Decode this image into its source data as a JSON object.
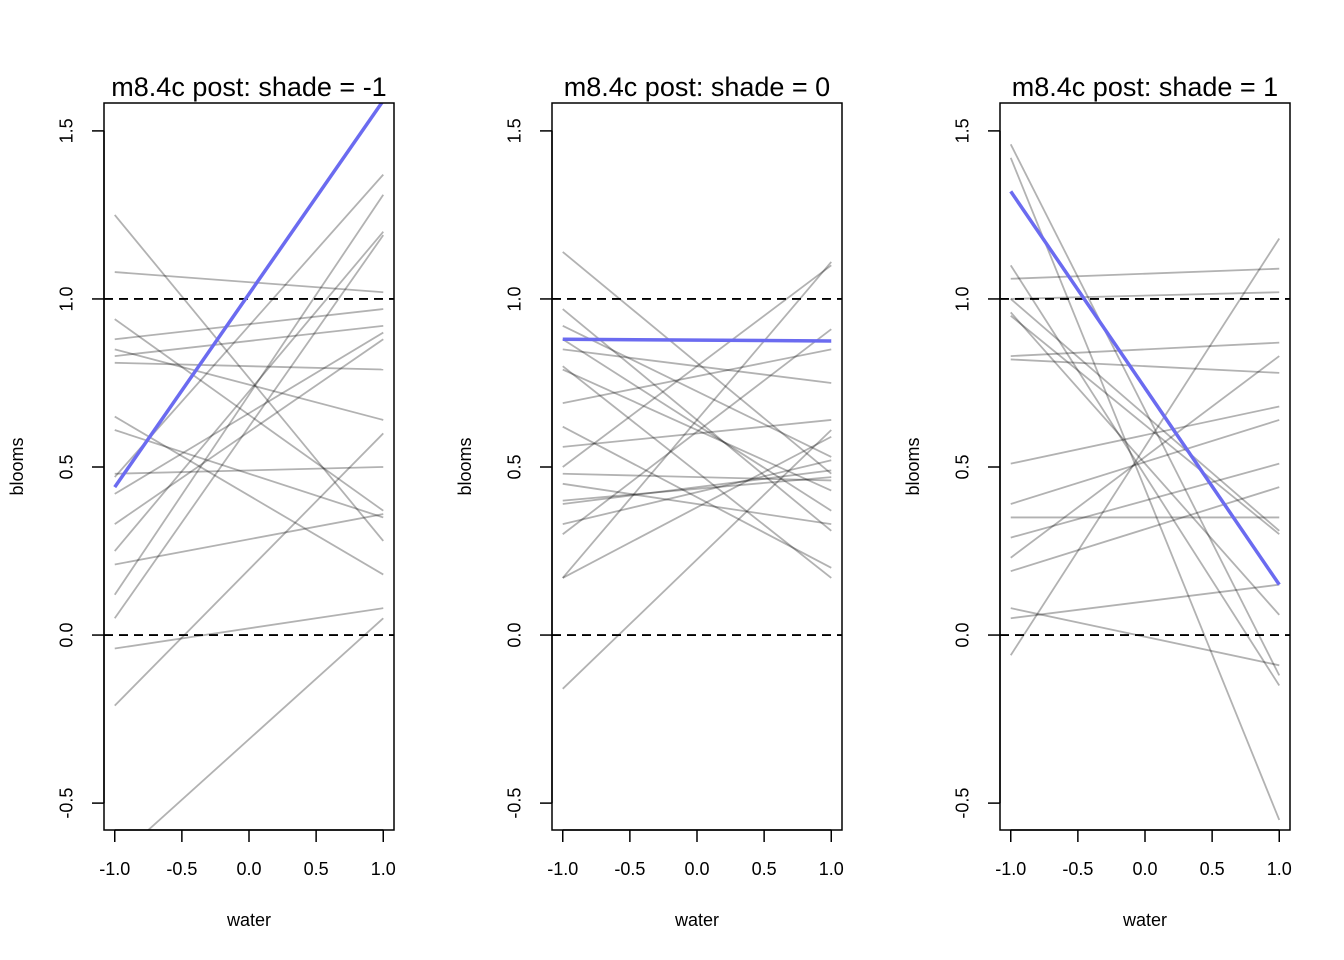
{
  "chart_data": [
    {
      "type": "line",
      "title": "m8.4c post: shade = -1",
      "xlabel": "water",
      "ylabel": "blooms",
      "x": [
        -1,
        1
      ],
      "xlim": [
        -1.08,
        1.08
      ],
      "ylim": [
        -0.58,
        1.583
      ],
      "xticks": [
        {
          "value": -1,
          "label": "-1.0"
        },
        -0.5,
        {
          "value": 0,
          "label": "0.0"
        },
        0.5,
        {
          "value": 1,
          "label": "1.0"
        }
      ],
      "yticks": [
        -0.5,
        {
          "value": 0,
          "label": "0.0"
        },
        0.5,
        {
          "value": 1,
          "label": "1.0"
        },
        1.5
      ],
      "hlines": [
        0,
        1
      ],
      "series": [
        {
          "color": "rgba(0,0,0,0.3)",
          "values": [
            1.25,
            0.28
          ]
        },
        {
          "color": "rgba(0,0,0,0.3)",
          "values": [
            1.08,
            1.02
          ]
        },
        {
          "color": "rgba(0,0,0,0.3)",
          "values": [
            0.94,
            0.37
          ]
        },
        {
          "color": "rgba(0,0,0,0.3)",
          "values": [
            0.88,
            0.97
          ]
        },
        {
          "color": "rgba(0,0,0,0.3)",
          "values": [
            0.85,
            0.64
          ]
        },
        {
          "color": "rgba(0,0,0,0.3)",
          "values": [
            0.83,
            0.92
          ]
        },
        {
          "color": "rgba(0,0,0,0.3)",
          "values": [
            0.81,
            0.79
          ]
        },
        {
          "color": "rgba(0,0,0,0.3)",
          "values": [
            0.65,
            0.18
          ]
        },
        {
          "color": "rgba(0,0,0,0.3)",
          "values": [
            0.61,
            0.35
          ]
        },
        {
          "color": "rgba(0,0,0,0.3)",
          "values": [
            0.48,
            0.5
          ]
        },
        {
          "color": "rgba(0,0,0,0.3)",
          "values": [
            0.42,
            0.9
          ]
        },
        {
          "color": "rgba(0,0,0,0.3)",
          "values": [
            0.33,
            0.88
          ]
        },
        {
          "color": "rgba(0,0,0,0.3)",
          "values": [
            0.25,
            1.2
          ]
        },
        {
          "color": "rgba(0,0,0,0.3)",
          "values": [
            0.21,
            0.36
          ]
        },
        {
          "color": "rgba(0,0,0,0.3)",
          "values": [
            0.12,
            1.31
          ]
        },
        {
          "color": "rgba(0,0,0,0.3)",
          "values": [
            0.05,
            1.19
          ]
        },
        {
          "color": "rgba(0,0,0,0.3)",
          "values": [
            -0.04,
            0.08
          ]
        },
        {
          "color": "rgba(0,0,0,0.3)",
          "values": [
            -0.21,
            0.6
          ]
        },
        {
          "color": "rgba(0,0,0,0.3)",
          "values": [
            -0.67,
            0.05
          ]
        },
        {
          "color": "rgba(0,0,0,0.3)",
          "values": [
            0.47,
            1.37
          ]
        },
        {
          "color": "#6b6bf0",
          "values": [
            0.44,
            1.59
          ]
        }
      ]
    },
    {
      "type": "line",
      "title": "m8.4c post: shade = 0",
      "xlabel": "water",
      "ylabel": "blooms",
      "x": [
        -1,
        1
      ],
      "xlim": [
        -1.08,
        1.08
      ],
      "ylim": [
        -0.58,
        1.583
      ],
      "xticks": [
        {
          "value": -1,
          "label": "-1.0"
        },
        -0.5,
        {
          "value": 0,
          "label": "0.0"
        },
        0.5,
        {
          "value": 1,
          "label": "1.0"
        }
      ],
      "yticks": [
        -0.5,
        {
          "value": 0,
          "label": "0.0"
        },
        0.5,
        {
          "value": 1,
          "label": "1.0"
        },
        1.5
      ],
      "hlines": [
        0,
        1
      ],
      "series": [
        {
          "color": "rgba(0,0,0,0.3)",
          "values": [
            1.14,
            0.48
          ]
        },
        {
          "color": "rgba(0,0,0,0.3)",
          "values": [
            0.97,
            0.31
          ]
        },
        {
          "color": "rgba(0,0,0,0.3)",
          "values": [
            0.92,
            0.53
          ]
        },
        {
          "color": "rgba(0,0,0,0.3)",
          "values": [
            0.88,
            0.37
          ]
        },
        {
          "color": "rgba(0,0,0,0.3)",
          "values": [
            0.85,
            0.75
          ]
        },
        {
          "color": "rgba(0,0,0,0.3)",
          "values": [
            0.8,
            0.17
          ]
        },
        {
          "color": "rgba(0,0,0,0.3)",
          "values": [
            0.79,
            0.43
          ]
        },
        {
          "color": "rgba(0,0,0,0.3)",
          "values": [
            0.69,
            0.85
          ]
        },
        {
          "color": "rgba(0,0,0,0.3)",
          "values": [
            0.62,
            0.2
          ]
        },
        {
          "color": "rgba(0,0,0,0.3)",
          "values": [
            0.56,
            0.64
          ]
        },
        {
          "color": "rgba(0,0,0,0.3)",
          "values": [
            0.5,
            1.1
          ]
        },
        {
          "color": "rgba(0,0,0,0.3)",
          "values": [
            0.48,
            0.46
          ]
        },
        {
          "color": "rgba(0,0,0,0.3)",
          "values": [
            0.45,
            0.33
          ]
        },
        {
          "color": "rgba(0,0,0,0.3)",
          "values": [
            0.4,
            0.47
          ]
        },
        {
          "color": "rgba(0,0,0,0.3)",
          "values": [
            0.39,
            0.49
          ]
        },
        {
          "color": "rgba(0,0,0,0.3)",
          "values": [
            0.33,
            0.52
          ]
        },
        {
          "color": "rgba(0,0,0,0.3)",
          "values": [
            0.3,
            0.91
          ]
        },
        {
          "color": "rgba(0,0,0,0.3)",
          "values": [
            0.17,
            1.11
          ]
        },
        {
          "color": "rgba(0,0,0,0.3)",
          "values": [
            0.17,
            0.59
          ]
        },
        {
          "color": "rgba(0,0,0,0.3)",
          "values": [
            -0.16,
            0.61
          ]
        },
        {
          "color": "#6b6bf0",
          "values": [
            0.88,
            0.875
          ]
        }
      ]
    },
    {
      "type": "line",
      "title": "m8.4c post: shade = 1",
      "xlabel": "water",
      "ylabel": "blooms",
      "x": [
        -1,
        1
      ],
      "xlim": [
        -1.08,
        1.08
      ],
      "ylim": [
        -0.58,
        1.583
      ],
      "xticks": [
        {
          "value": -1,
          "label": "-1.0"
        },
        -0.5,
        {
          "value": 0,
          "label": "0.0"
        },
        0.5,
        {
          "value": 1,
          "label": "1.0"
        }
      ],
      "yticks": [
        -0.5,
        {
          "value": 0,
          "label": "0.0"
        },
        0.5,
        {
          "value": 1,
          "label": "1.0"
        },
        1.5
      ],
      "hlines": [
        0,
        1
      ],
      "series": [
        {
          "color": "rgba(0,0,0,0.3)",
          "values": [
            1.46,
            -0.12
          ]
        },
        {
          "color": "rgba(0,0,0,0.3)",
          "values": [
            1.42,
            -0.55
          ]
        },
        {
          "color": "rgba(0,0,0,0.3)",
          "values": [
            1.1,
            -0.15
          ]
        },
        {
          "color": "rgba(0,0,0,0.3)",
          "values": [
            1.06,
            1.09
          ]
        },
        {
          "color": "rgba(0,0,0,0.3)",
          "values": [
            1.0,
            0.31
          ]
        },
        {
          "color": "rgba(0,0,0,0.3)",
          "values": [
            0.96,
            0.06
          ]
        },
        {
          "color": "rgba(0,0,0,0.3)",
          "values": [
            0.95,
            0.3
          ]
        },
        {
          "color": "rgba(0,0,0,0.3)",
          "values": [
            0.83,
            0.87
          ]
        },
        {
          "color": "rgba(0,0,0,0.3)",
          "values": [
            0.82,
            0.78
          ]
        },
        {
          "color": "rgba(0,0,0,0.3)",
          "values": [
            0.51,
            0.68
          ]
        },
        {
          "color": "rgba(0,0,0,0.3)",
          "values": [
            0.39,
            0.64
          ]
        },
        {
          "color": "rgba(0,0,0,0.3)",
          "values": [
            0.35,
            0.35
          ]
        },
        {
          "color": "rgba(0,0,0,0.3)",
          "values": [
            0.29,
            0.51
          ]
        },
        {
          "color": "rgba(0,0,0,0.3)",
          "values": [
            0.23,
            0.83
          ]
        },
        {
          "color": "rgba(0,0,0,0.3)",
          "values": [
            0.19,
            0.44
          ]
        },
        {
          "color": "rgba(0,0,0,0.3)",
          "values": [
            0.08,
            -0.09
          ]
        },
        {
          "color": "rgba(0,0,0,0.3)",
          "values": [
            0.05,
            0.15
          ]
        },
        {
          "color": "rgba(0,0,0,0.3)",
          "values": [
            -0.06,
            1.18
          ]
        },
        {
          "color": "rgba(0,0,0,0.3)",
          "values": [
            1.0,
            1.02
          ]
        },
        {
          "color": "#6b6bf0",
          "values": [
            1.32,
            0.15
          ]
        }
      ]
    }
  ]
}
